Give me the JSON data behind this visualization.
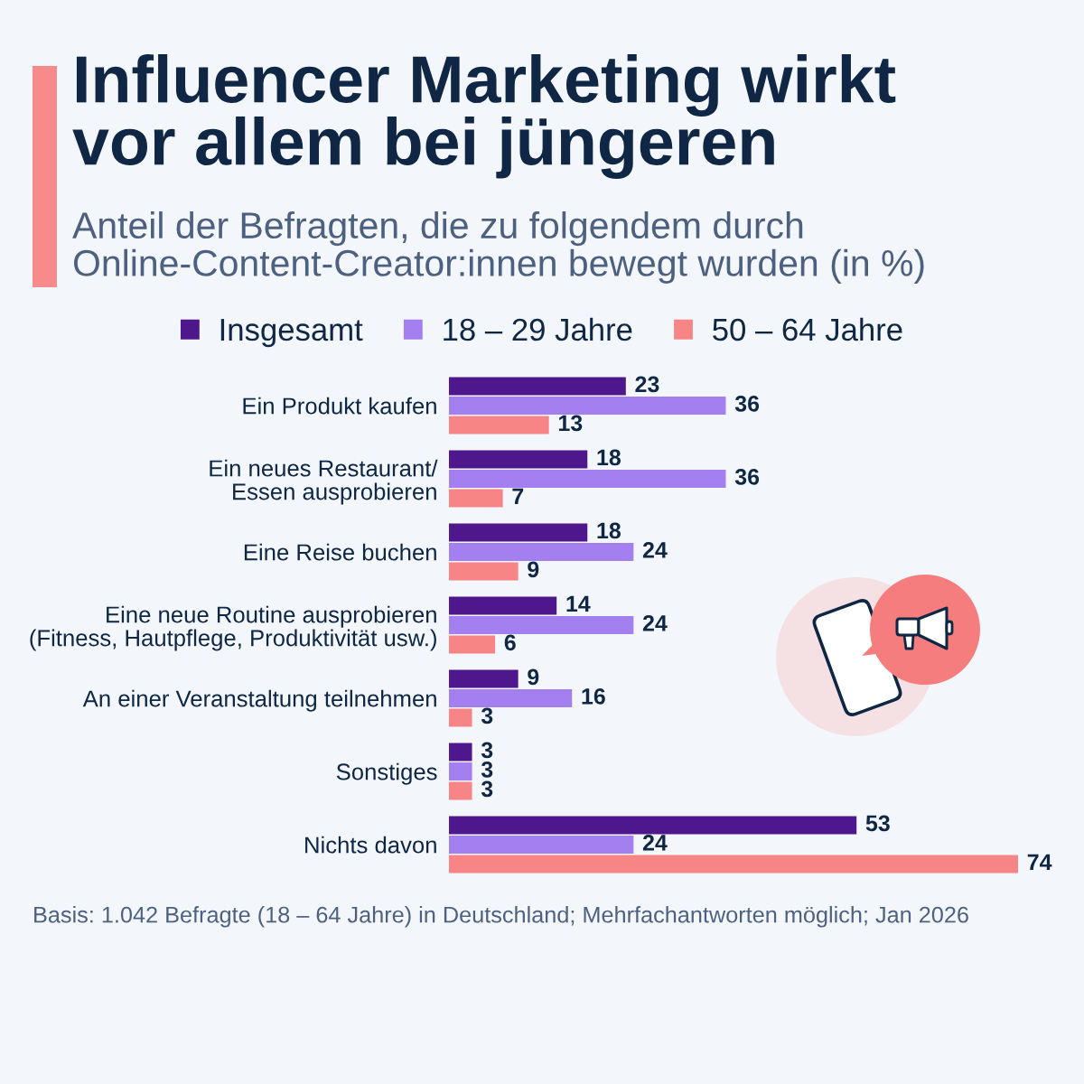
{
  "chart_data": {
    "type": "bar",
    "orientation": "horizontal",
    "title": "Influencer Marketing wirkt\nvor allem bei jüngeren",
    "subtitle": "Anteil der Befragten, die zu folgendem durch\nOnline-Content-Creator:innen bewegt wurden (in %)",
    "categories": [
      "Ein Produkt kaufen",
      "Ein neues Restaurant/\nEssen ausprobieren",
      "Eine Reise buchen",
      "Eine neue Routine ausprobieren\n(Fitness, Hautpflege, Produktivität usw.)",
      "An einer Veranstaltung teilnehmen",
      "Sonstiges",
      "Nichts davon"
    ],
    "series": [
      {
        "name": "Insgesamt",
        "color": "#4e178c",
        "values": [
          23,
          18,
          18,
          14,
          9,
          3,
          53
        ]
      },
      {
        "name": "18 – 29 Jahre",
        "color": "#a47ff0",
        "values": [
          36,
          36,
          24,
          24,
          16,
          3,
          24
        ]
      },
      {
        "name": "50 – 64 Jahre",
        "color": "#f78585",
        "values": [
          13,
          7,
          9,
          6,
          3,
          3,
          74
        ]
      }
    ],
    "data_labels": true,
    "legend": "top",
    "tick_labels": "y",
    "annotations": [
      "Basis: 1.042 Befragte (18 – 64 Jahre) in Deutschland; Mehrfachantworten möglich; Jan 2026"
    ]
  }
}
